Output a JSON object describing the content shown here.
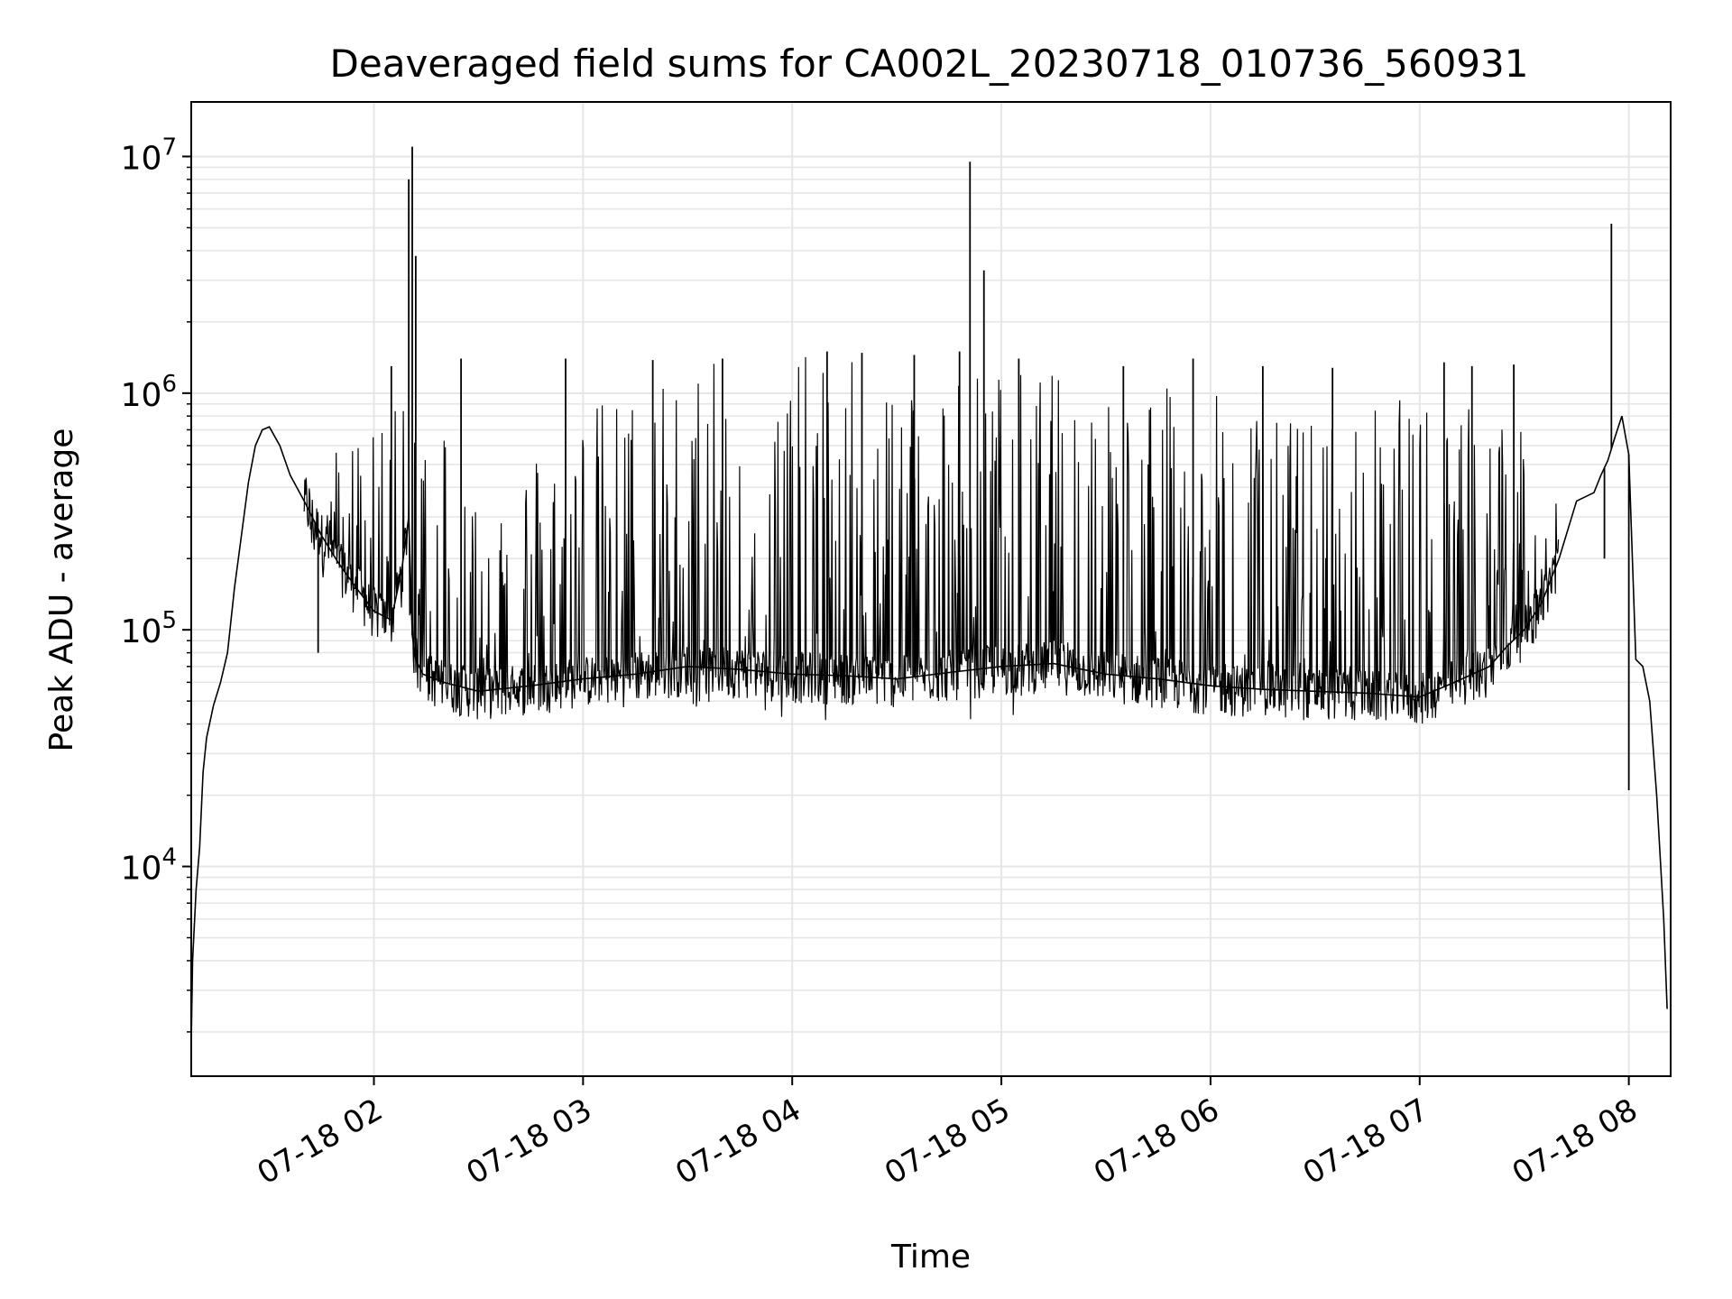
{
  "chart_data": {
    "type": "line",
    "title": "Deaveraged field sums for CA002L_20230718_010736_560931",
    "xlabel": "Time",
    "ylabel": "Peak ADU - average",
    "yscale": "log",
    "ylim": [
      1300,
      17000000
    ],
    "xlim": [
      "07-18 01:07:36",
      "07-18 08:12:00"
    ],
    "grid": true,
    "grid_minor": true,
    "line_color": "#000000",
    "grid_color": "#e6e6e6",
    "x_ticks": [
      {
        "label": "07-18 02",
        "value": "07-18 02:00"
      },
      {
        "label": "07-18 03",
        "value": "07-18 03:00"
      },
      {
        "label": "07-18 04",
        "value": "07-18 04:00"
      },
      {
        "label": "07-18 05",
        "value": "07-18 05:00"
      },
      {
        "label": "07-18 06",
        "value": "07-18 06:00"
      },
      {
        "label": "07-18 07",
        "value": "07-18 07:00"
      },
      {
        "label": "07-18 08",
        "value": "07-18 08:00"
      }
    ],
    "y_ticks": [
      {
        "base": "10",
        "exp": "4",
        "value": 10000
      },
      {
        "base": "10",
        "exp": "5",
        "value": 100000
      },
      {
        "base": "10",
        "exp": "6",
        "value": 1000000
      },
      {
        "base": "10",
        "exp": "7",
        "value": 10000000
      }
    ],
    "series": [
      {
        "x": [
          "07-18 01:07:36",
          "07-18 01:08",
          "07-18 01:09",
          "07-18 01:10",
          "07-18 01:11",
          "07-18 01:12",
          "07-18 01:14",
          "07-18 01:16",
          "07-18 01:18",
          "07-18 01:20",
          "07-18 01:22",
          "07-18 01:24",
          "07-18 01:26",
          "07-18 01:28",
          "07-18 01:30",
          "07-18 01:33",
          "07-18 01:36",
          "07-18 01:40",
          "07-18 01:45",
          "07-18 01:50",
          "07-18 01:55",
          "07-18 02:00",
          "07-18 02:05",
          "07-18 02:08",
          "07-18 02:10",
          "07-18 02:11",
          "07-18 02:12",
          "07-18 02:14",
          "07-18 02:20",
          "07-18 02:30",
          "07-18 02:45",
          "07-18 03:00",
          "07-18 03:15",
          "07-18 03:30",
          "07-18 03:45",
          "07-18 04:00",
          "07-18 04:15",
          "07-18 04:30",
          "07-18 04:45",
          "07-18 05:00",
          "07-18 05:15",
          "07-18 05:30",
          "07-18 05:45",
          "07-18 06:00",
          "07-18 06:15",
          "07-18 06:30",
          "07-18 06:45",
          "07-18 07:00",
          "07-18 07:10",
          "07-18 07:20",
          "07-18 07:25",
          "07-18 07:30",
          "07-18 07:35",
          "07-18 07:40",
          "07-18 07:45",
          "07-18 07:50",
          "07-18 07:52",
          "07-18 07:54",
          "07-18 07:56",
          "07-18 07:58",
          "07-18 08:00",
          "07-18 08:02",
          "07-18 08:04",
          "07-18 08:06",
          "07-18 08:08",
          "07-18 08:10",
          "07-18 08:11"
        ],
        "y": [
          1800,
          4000,
          8000,
          12000,
          25000,
          35000,
          48000,
          60000,
          80000,
          150000,
          250000,
          420000,
          600000,
          700000,
          720000,
          600000,
          450000,
          350000,
          250000,
          190000,
          150000,
          120000,
          110000,
          180000,
          300000,
          95000,
          75000,
          65000,
          60000,
          55000,
          58000,
          62000,
          65000,
          70000,
          68000,
          65000,
          64000,
          62000,
          66000,
          70000,
          72000,
          65000,
          62000,
          58000,
          56000,
          55000,
          54000,
          52000,
          60000,
          70000,
          85000,
          100000,
          130000,
          200000,
          350000,
          380000,
          450000,
          520000,
          650000,
          800000,
          550000,
          75000,
          70000,
          50000,
          20000,
          6000,
          2500
        ]
      }
    ],
    "envelope": {
      "x": [
        "07-18 01:40",
        "07-18 02:00",
        "07-18 02:20",
        "07-18 02:30",
        "07-18 03:00",
        "07-18 03:30",
        "07-18 03:45",
        "07-18 04:00",
        "07-18 04:30",
        "07-18 05:00",
        "07-18 05:30",
        "07-18 06:00",
        "07-18 06:30",
        "07-18 07:00",
        "07-18 07:20",
        "07-18 07:40"
      ],
      "lower": [
        150000,
        110000,
        58000,
        42000,
        48000,
        45000,
        44000,
        42000,
        40000,
        42000,
        42000,
        44000,
        46000,
        46000,
        50000,
        170000
      ],
      "upper": [
        500000,
        800000,
        1000000,
        400000,
        900000,
        1300000,
        1400000,
        1450000,
        1400000,
        1300000,
        1200000,
        1000000,
        800000,
        1000000,
        900000,
        500000
      ]
    },
    "spikes": [
      {
        "x": "07-18 02:11",
        "y": 11000000
      },
      {
        "x": "07-18 02:10",
        "y": 8000000
      },
      {
        "x": "07-18 02:12",
        "y": 3800000
      },
      {
        "x": "07-18 04:51",
        "y": 9500000
      },
      {
        "x": "07-18 04:55",
        "y": 3300000
      },
      {
        "x": "07-18 07:55",
        "y": 5200000
      },
      {
        "x": "07-18 02:05",
        "y": 1300000
      },
      {
        "x": "07-18 02:25",
        "y": 1400000
      },
      {
        "x": "07-18 02:55",
        "y": 1400000
      },
      {
        "x": "07-18 03:20",
        "y": 1380000
      },
      {
        "x": "07-18 03:40",
        "y": 1400000
      },
      {
        "x": "07-18 04:10",
        "y": 1500000
      },
      {
        "x": "07-18 04:20",
        "y": 1480000
      },
      {
        "x": "07-18 04:35",
        "y": 1450000
      },
      {
        "x": "07-18 04:48",
        "y": 1500000
      },
      {
        "x": "07-18 05:05",
        "y": 1400000
      },
      {
        "x": "07-18 05:35",
        "y": 1300000
      },
      {
        "x": "07-18 05:55",
        "y": 1400000
      },
      {
        "x": "07-18 06:15",
        "y": 1300000
      },
      {
        "x": "07-18 06:35",
        "y": 1280000
      },
      {
        "x": "07-18 07:07",
        "y": 1350000
      },
      {
        "x": "07-18 07:15",
        "y": 1300000
      },
      {
        "x": "07-18 07:27",
        "y": 1320000
      },
      {
        "x": "07-18 01:44",
        "y": 80000
      },
      {
        "x": "07-18 07:53",
        "y": 200000
      },
      {
        "x": "07-18 08:00",
        "y": 21000
      }
    ]
  }
}
